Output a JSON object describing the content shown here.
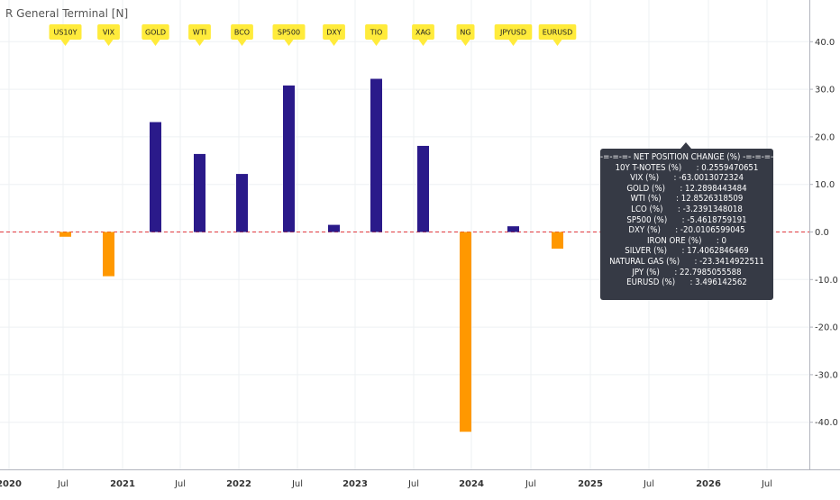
{
  "indicator_title": "R General Terminal [N]",
  "colors": {
    "positive_bar": "#2a1a8a",
    "negative_bar": "#ff9800",
    "zero_line": "#e0393e",
    "flag_fill": "#ffeb3b",
    "grid": "#eef0f3",
    "info_box_bg": "#363a45"
  },
  "info_box": {
    "title": "-=-=-=- NET POSITION CHANGE (%) -=-=-=-",
    "lines": [
      "10Y T-NOTES (%)      : 0.2559470651",
      "VIX (%)      : -63.0013072324",
      "GOLD (%)      : 12.2898443484",
      "WTI (%)      : 12.8526318509",
      "LCO (%)      : -3.2391348018",
      "SP500 (%)      : -5.4618759191",
      "DXY (%)      : -20.0106599045",
      "IRON ORE (%)      : 0",
      "SILVER (%)      : 17.4062846469",
      "NATURAL GAS (%)      : -23.3414922511",
      "JPY (%)      : 22.7985055588",
      "EURUSD (%)      : 3.496142562"
    ]
  },
  "chart_data": {
    "type": "bar",
    "categories": [
      "US10Y",
      "VIX",
      "GOLD",
      "WTI",
      "BCO",
      "SP500",
      "DXY",
      "TIO",
      "XAG",
      "NG",
      "JPYUSD",
      "EURUSD"
    ],
    "values": [
      -1.0,
      -9.3,
      23.1,
      16.4,
      12.2,
      30.8,
      1.5,
      32.2,
      18.1,
      -42.0,
      1.2,
      -3.5
    ],
    "ylim": [
      -50.0,
      50.0
    ],
    "y_ticks": [
      "40.0",
      "30.0",
      "20.0",
      "10.0",
      "0.0",
      "-10.0",
      "-20.0",
      "-30.0",
      "-40.0"
    ],
    "x_ticks": [
      {
        "label": "2020",
        "year": true
      },
      {
        "label": "Jul",
        "year": false
      },
      {
        "label": "2021",
        "year": true
      },
      {
        "label": "Jul",
        "year": false
      },
      {
        "label": "2022",
        "year": true
      },
      {
        "label": "Jul",
        "year": false
      },
      {
        "label": "2023",
        "year": true
      },
      {
        "label": "Jul",
        "year": false
      },
      {
        "label": "2024",
        "year": true
      },
      {
        "label": "Jul",
        "year": false
      },
      {
        "label": "2025",
        "year": true
      },
      {
        "label": "Jul",
        "year": false
      },
      {
        "label": "2026",
        "year": true
      },
      {
        "label": "Jul",
        "year": false
      }
    ],
    "grid": true
  }
}
